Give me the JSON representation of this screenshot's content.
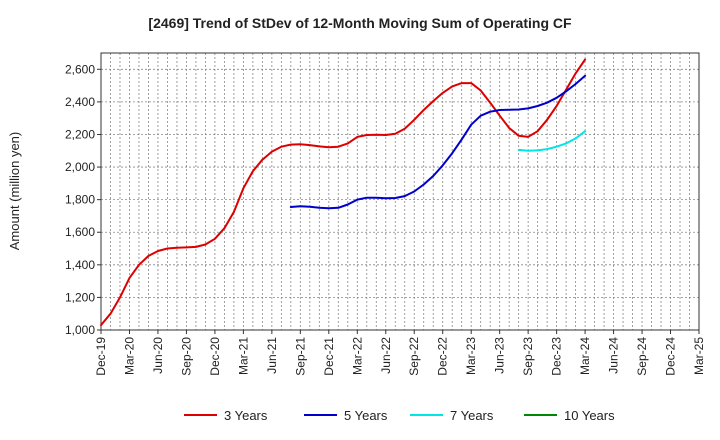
{
  "chart_data": {
    "type": "line",
    "title": "[2469]  Trend of StDev of 12-Month Moving Sum of Operating CF",
    "xlabel": "",
    "ylabel": "Amount (million yen)",
    "ylim": [
      1000,
      2700
    ],
    "yticks": [
      1000,
      1200,
      1400,
      1600,
      1800,
      2000,
      2200,
      2400,
      2600
    ],
    "ytick_labels": [
      "1,000",
      "1,200",
      "1,400",
      "1,600",
      "1,800",
      "2,000",
      "2,200",
      "2,400",
      "2,600"
    ],
    "x_range": [
      "2019-12",
      "2025-03"
    ],
    "xtick_labels": [
      "Dec-19",
      "Mar-20",
      "Jun-20",
      "Sep-20",
      "Dec-20",
      "Mar-21",
      "Jun-21",
      "Sep-21",
      "Dec-21",
      "Mar-22",
      "Jun-22",
      "Sep-22",
      "Dec-22",
      "Mar-23",
      "Jun-23",
      "Sep-23",
      "Dec-23",
      "Mar-24",
      "Jun-24",
      "Sep-24",
      "Dec-24",
      "Mar-25"
    ],
    "grid": true,
    "legend_position": "bottom",
    "series": [
      {
        "name": "3 Years",
        "color": "#dd0000",
        "points": [
          [
            "2019-12",
            1030
          ],
          [
            "2020-01",
            1100
          ],
          [
            "2020-02",
            1200
          ],
          [
            "2020-03",
            1320
          ],
          [
            "2020-04",
            1400
          ],
          [
            "2020-05",
            1455
          ],
          [
            "2020-06",
            1485
          ],
          [
            "2020-07",
            1500
          ],
          [
            "2020-08",
            1505
          ],
          [
            "2020-09",
            1507
          ],
          [
            "2020-10",
            1510
          ],
          [
            "2020-11",
            1525
          ],
          [
            "2020-12",
            1560
          ],
          [
            "2021-01",
            1625
          ],
          [
            "2021-02",
            1725
          ],
          [
            "2021-03",
            1870
          ],
          [
            "2021-04",
            1975
          ],
          [
            "2021-05",
            2045
          ],
          [
            "2021-06",
            2095
          ],
          [
            "2021-07",
            2125
          ],
          [
            "2021-08",
            2138
          ],
          [
            "2021-09",
            2140
          ],
          [
            "2021-10",
            2135
          ],
          [
            "2021-11",
            2127
          ],
          [
            "2021-12",
            2122
          ],
          [
            "2022-01",
            2125
          ],
          [
            "2022-02",
            2145
          ],
          [
            "2022-03",
            2185
          ],
          [
            "2022-04",
            2197
          ],
          [
            "2022-05",
            2198
          ],
          [
            "2022-06",
            2197
          ],
          [
            "2022-07",
            2205
          ],
          [
            "2022-08",
            2235
          ],
          [
            "2022-09",
            2290
          ],
          [
            "2022-10",
            2350
          ],
          [
            "2022-11",
            2405
          ],
          [
            "2022-12",
            2455
          ],
          [
            "2023-01",
            2495
          ],
          [
            "2023-02",
            2515
          ],
          [
            "2023-03",
            2515
          ],
          [
            "2023-04",
            2470
          ],
          [
            "2023-05",
            2395
          ],
          [
            "2023-06",
            2315
          ],
          [
            "2023-07",
            2240
          ],
          [
            "2023-08",
            2192
          ],
          [
            "2023-09",
            2185
          ],
          [
            "2023-10",
            2220
          ],
          [
            "2023-11",
            2290
          ],
          [
            "2023-12",
            2375
          ],
          [
            "2024-01",
            2475
          ],
          [
            "2024-02",
            2575
          ],
          [
            "2024-03",
            2660
          ]
        ]
      },
      {
        "name": "5 Years",
        "color": "#0000cc",
        "points": [
          [
            "2021-08",
            1755
          ],
          [
            "2021-09",
            1760
          ],
          [
            "2021-10",
            1757
          ],
          [
            "2021-11",
            1750
          ],
          [
            "2021-12",
            1747
          ],
          [
            "2022-01",
            1750
          ],
          [
            "2022-02",
            1770
          ],
          [
            "2022-03",
            1800
          ],
          [
            "2022-04",
            1812
          ],
          [
            "2022-05",
            1812
          ],
          [
            "2022-06",
            1808
          ],
          [
            "2022-07",
            1810
          ],
          [
            "2022-08",
            1822
          ],
          [
            "2022-09",
            1850
          ],
          [
            "2022-10",
            1893
          ],
          [
            "2022-11",
            1945
          ],
          [
            "2022-12",
            2010
          ],
          [
            "2023-01",
            2085
          ],
          [
            "2023-02",
            2170
          ],
          [
            "2023-03",
            2260
          ],
          [
            "2023-04",
            2315
          ],
          [
            "2023-05",
            2340
          ],
          [
            "2023-06",
            2350
          ],
          [
            "2023-07",
            2352
          ],
          [
            "2023-08",
            2353
          ],
          [
            "2023-09",
            2360
          ],
          [
            "2023-10",
            2375
          ],
          [
            "2023-11",
            2395
          ],
          [
            "2023-12",
            2425
          ],
          [
            "2024-01",
            2465
          ],
          [
            "2024-02",
            2510
          ],
          [
            "2024-03",
            2560
          ]
        ]
      },
      {
        "name": "7 Years",
        "color": "#00e5e5",
        "points": [
          [
            "2023-08",
            2105
          ],
          [
            "2023-09",
            2100
          ],
          [
            "2023-10",
            2102
          ],
          [
            "2023-11",
            2110
          ],
          [
            "2023-12",
            2125
          ],
          [
            "2024-01",
            2145
          ],
          [
            "2024-02",
            2175
          ],
          [
            "2024-03",
            2220
          ]
        ]
      },
      {
        "name": "10 Years",
        "color": "#008800",
        "points": []
      }
    ]
  }
}
